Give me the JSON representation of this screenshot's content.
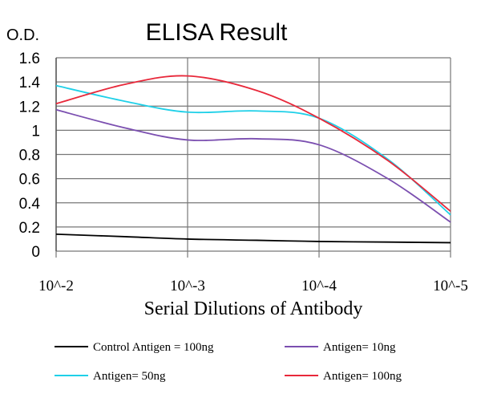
{
  "chart_data": {
    "type": "line",
    "title": "ELISA Result",
    "ylabel": "O.D.",
    "xlabel": "Serial Dilutions of Antibody",
    "xscale": "log",
    "xlim": [
      0.01,
      1e-05
    ],
    "ylim": [
      0,
      1.6
    ],
    "xticks": [
      0.01,
      0.001,
      0.0001,
      1e-05
    ],
    "xtick_labels": [
      "10^-2",
      "10^-3",
      "10^-4",
      "10^-5"
    ],
    "yticks": [
      0,
      0.2,
      0.4,
      0.6,
      0.8,
      1,
      1.2,
      1.4,
      1.6
    ],
    "ytick_labels": [
      "0",
      "0.2",
      "0.4",
      "0.6",
      "0.8",
      "1",
      "1.2",
      "1.4",
      "1.6"
    ],
    "grid": true,
    "legend_position": "bottom",
    "x": [
      0.01,
      0.003,
      0.001,
      0.0003,
      0.0001,
      3e-05,
      1e-05
    ],
    "series": [
      {
        "name": "Control Antigen = 100ng",
        "color": "#000000",
        "values": [
          0.14,
          0.12,
          0.1,
          0.09,
          0.08,
          0.075,
          0.07
        ]
      },
      {
        "name": "Antigen= 10ng",
        "color": "#7b4fb0",
        "values": [
          1.17,
          1.02,
          0.92,
          0.93,
          0.88,
          0.6,
          0.24
        ]
      },
      {
        "name": "Antigen= 50ng",
        "color": "#1fd0e8",
        "values": [
          1.37,
          1.24,
          1.15,
          1.16,
          1.1,
          0.76,
          0.3
        ]
      },
      {
        "name": "Antigen= 100ng",
        "color": "#e8283a",
        "values": [
          1.22,
          1.38,
          1.45,
          1.33,
          1.1,
          0.75,
          0.33
        ]
      }
    ]
  }
}
